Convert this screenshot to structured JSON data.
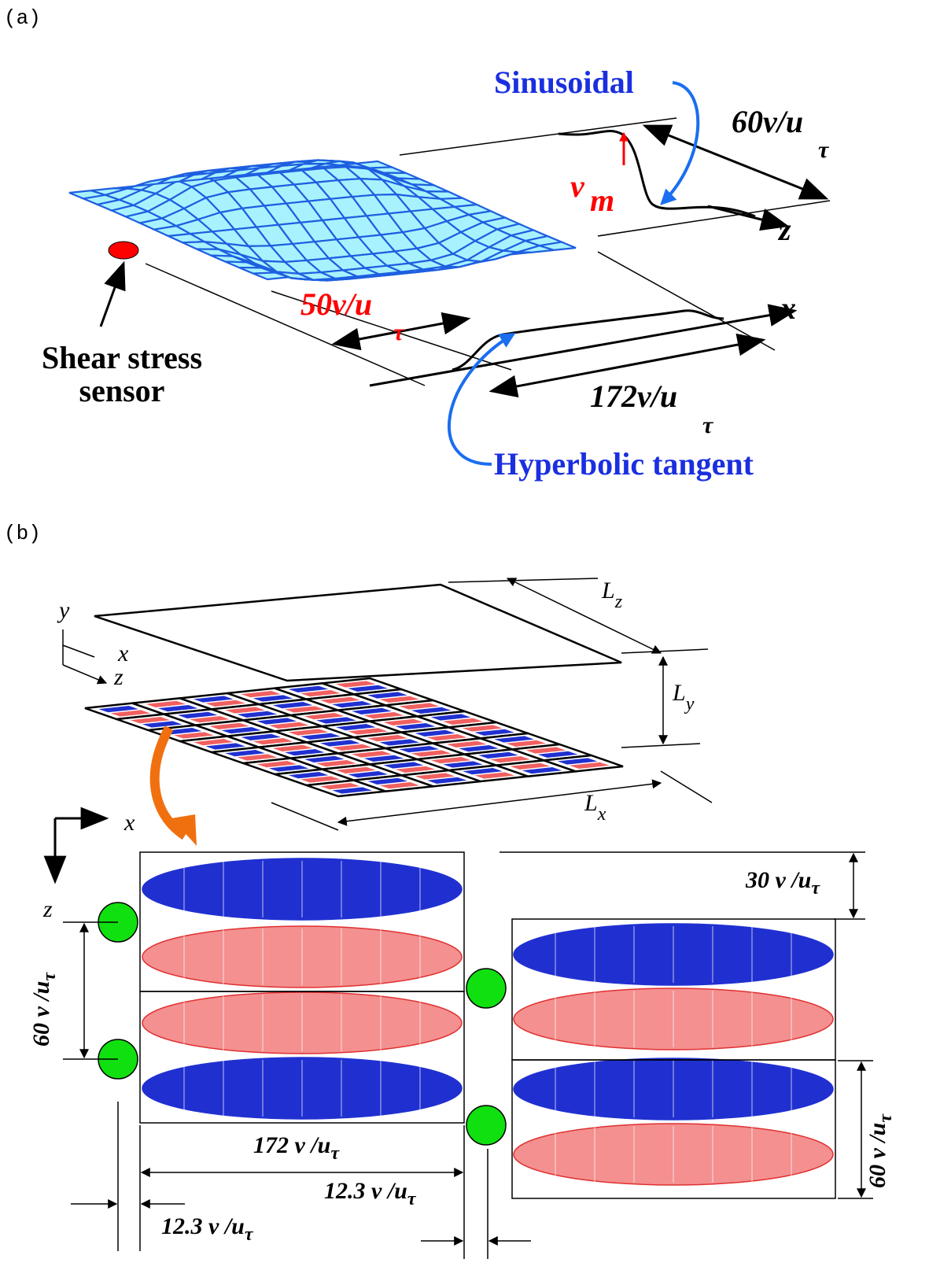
{
  "panel_a": {
    "label": "(a)",
    "sinusoidal": "Sinusoidal",
    "width_z": {
      "main": "60ν/u",
      "sub": "τ"
    },
    "amplitude": {
      "main": "v",
      "sub": "m"
    },
    "axis_z": "z",
    "axis_x": "x",
    "sensor_distance": {
      "main": "50ν/u",
      "sub": "τ"
    },
    "sensor_label": [
      "Shear stress",
      "sensor"
    ],
    "length_x": {
      "main": "172ν/u",
      "sub": "τ"
    },
    "hyperbolic": "Hyperbolic tangent"
  },
  "panel_b": {
    "label": "(b)",
    "axis_y": "y",
    "axis_x": "x",
    "axis_z": "z",
    "lz": {
      "main": "L",
      "sub": "z"
    },
    "ly": {
      "main": "L",
      "sub": "y"
    },
    "lx": {
      "main": "L",
      "sub": "x"
    },
    "detail_axis_x": "x",
    "detail_axis_z": "z",
    "half_width": {
      "main": "30 ν /u",
      "sub": "τ"
    },
    "spacing_left": {
      "main": "60 ν /u",
      "sub": "τ"
    },
    "spacing_right": {
      "main": "60 ν /u",
      "sub": "τ"
    },
    "length": {
      "main": "172 ν /u",
      "sub": "τ"
    },
    "gap_left": {
      "main": "12.3 ν /u",
      "sub": "τ"
    },
    "gap_right": {
      "main": "12.3 ν /u",
      "sub": "τ"
    }
  }
}
